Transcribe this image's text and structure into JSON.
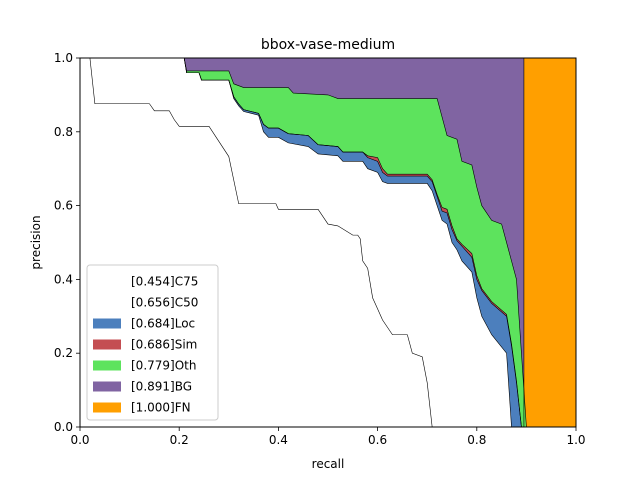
{
  "chart_data": {
    "type": "area",
    "title": "bbox-vase-medium",
    "xlabel": "recall",
    "ylabel": "precision",
    "xlim": [
      0,
      1
    ],
    "ylim": [
      0,
      1
    ],
    "xticks": [
      "0.0",
      "0.2",
      "0.4",
      "0.6",
      "0.8",
      "1.0"
    ],
    "yticks": [
      "0.0",
      "0.2",
      "0.4",
      "0.6",
      "0.8",
      "1.0"
    ],
    "legend_position": "lower-left",
    "series": [
      {
        "name": "[0.454]C75",
        "color": "#ffffff",
        "points": [
          [
            0.0,
            1.0
          ],
          [
            0.02,
            1.0
          ],
          [
            0.03,
            0.876
          ],
          [
            0.14,
            0.876
          ],
          [
            0.15,
            0.857
          ],
          [
            0.18,
            0.857
          ],
          [
            0.19,
            0.833
          ],
          [
            0.2,
            0.815
          ],
          [
            0.26,
            0.815
          ],
          [
            0.3,
            0.733
          ],
          [
            0.32,
            0.605
          ],
          [
            0.395,
            0.605
          ],
          [
            0.4,
            0.59
          ],
          [
            0.48,
            0.59
          ],
          [
            0.49,
            0.57
          ],
          [
            0.5,
            0.55
          ],
          [
            0.52,
            0.545
          ],
          [
            0.55,
            0.52
          ],
          [
            0.56,
            0.52
          ],
          [
            0.565,
            0.51
          ],
          [
            0.57,
            0.45
          ],
          [
            0.58,
            0.43
          ],
          [
            0.59,
            0.35
          ],
          [
            0.6,
            0.32
          ],
          [
            0.61,
            0.29
          ],
          [
            0.63,
            0.25
          ],
          [
            0.66,
            0.25
          ],
          [
            0.67,
            0.2
          ],
          [
            0.69,
            0.19
          ],
          [
            0.7,
            0.12
          ],
          [
            0.71,
            0.0
          ]
        ]
      },
      {
        "name": "[0.656]C50",
        "color": "#ffffff",
        "points": [
          [
            0.0,
            1.0
          ],
          [
            0.21,
            1.0
          ],
          [
            0.215,
            0.96
          ],
          [
            0.24,
            0.96
          ],
          [
            0.245,
            0.94
          ],
          [
            0.3,
            0.94
          ],
          [
            0.31,
            0.89
          ],
          [
            0.32,
            0.87
          ],
          [
            0.33,
            0.855
          ],
          [
            0.345,
            0.85
          ],
          [
            0.36,
            0.845
          ],
          [
            0.37,
            0.8
          ],
          [
            0.38,
            0.785
          ],
          [
            0.4,
            0.785
          ],
          [
            0.42,
            0.77
          ],
          [
            0.46,
            0.76
          ],
          [
            0.48,
            0.74
          ],
          [
            0.52,
            0.735
          ],
          [
            0.53,
            0.72
          ],
          [
            0.57,
            0.72
          ],
          [
            0.58,
            0.7
          ],
          [
            0.6,
            0.69
          ],
          [
            0.61,
            0.665
          ],
          [
            0.62,
            0.66
          ],
          [
            0.7,
            0.66
          ],
          [
            0.71,
            0.64
          ],
          [
            0.72,
            0.6
          ],
          [
            0.73,
            0.56
          ],
          [
            0.74,
            0.55
          ],
          [
            0.75,
            0.5
          ],
          [
            0.76,
            0.48
          ],
          [
            0.77,
            0.45
          ],
          [
            0.79,
            0.42
          ],
          [
            0.8,
            0.35
          ],
          [
            0.81,
            0.3
          ],
          [
            0.83,
            0.25
          ],
          [
            0.86,
            0.2
          ],
          [
            0.865,
            0.1
          ],
          [
            0.87,
            0.0
          ]
        ]
      },
      {
        "name": "[0.684]Loc",
        "color": "#4c7fbd",
        "points": [
          [
            0.0,
            1.0
          ],
          [
            0.21,
            1.0
          ],
          [
            0.215,
            0.96
          ],
          [
            0.24,
            0.96
          ],
          [
            0.245,
            0.94
          ],
          [
            0.3,
            0.94
          ],
          [
            0.31,
            0.895
          ],
          [
            0.32,
            0.875
          ],
          [
            0.33,
            0.86
          ],
          [
            0.345,
            0.855
          ],
          [
            0.36,
            0.85
          ],
          [
            0.37,
            0.82
          ],
          [
            0.38,
            0.81
          ],
          [
            0.4,
            0.81
          ],
          [
            0.42,
            0.795
          ],
          [
            0.46,
            0.79
          ],
          [
            0.48,
            0.765
          ],
          [
            0.52,
            0.76
          ],
          [
            0.53,
            0.745
          ],
          [
            0.57,
            0.745
          ],
          [
            0.58,
            0.73
          ],
          [
            0.6,
            0.72
          ],
          [
            0.61,
            0.69
          ],
          [
            0.62,
            0.68
          ],
          [
            0.7,
            0.68
          ],
          [
            0.71,
            0.665
          ],
          [
            0.72,
            0.625
          ],
          [
            0.73,
            0.585
          ],
          [
            0.74,
            0.58
          ],
          [
            0.75,
            0.535
          ],
          [
            0.76,
            0.505
          ],
          [
            0.77,
            0.49
          ],
          [
            0.79,
            0.46
          ],
          [
            0.8,
            0.4
          ],
          [
            0.81,
            0.37
          ],
          [
            0.83,
            0.335
          ],
          [
            0.86,
            0.3
          ],
          [
            0.87,
            0.22
          ],
          [
            0.88,
            0.12
          ],
          [
            0.89,
            0.0
          ]
        ]
      },
      {
        "name": "[0.686]Sim",
        "color": "#c44e52",
        "points": [
          [
            0.0,
            1.0
          ],
          [
            0.21,
            1.0
          ],
          [
            0.215,
            0.96
          ],
          [
            0.24,
            0.96
          ],
          [
            0.245,
            0.94
          ],
          [
            0.3,
            0.94
          ],
          [
            0.31,
            0.895
          ],
          [
            0.32,
            0.875
          ],
          [
            0.33,
            0.86
          ],
          [
            0.345,
            0.855
          ],
          [
            0.36,
            0.85
          ],
          [
            0.37,
            0.82
          ],
          [
            0.38,
            0.81
          ],
          [
            0.4,
            0.81
          ],
          [
            0.42,
            0.795
          ],
          [
            0.46,
            0.79
          ],
          [
            0.48,
            0.765
          ],
          [
            0.52,
            0.76
          ],
          [
            0.53,
            0.745
          ],
          [
            0.57,
            0.745
          ],
          [
            0.58,
            0.735
          ],
          [
            0.6,
            0.73
          ],
          [
            0.61,
            0.7
          ],
          [
            0.62,
            0.685
          ],
          [
            0.7,
            0.685
          ],
          [
            0.71,
            0.67
          ],
          [
            0.72,
            0.63
          ],
          [
            0.73,
            0.595
          ],
          [
            0.74,
            0.59
          ],
          [
            0.75,
            0.545
          ],
          [
            0.76,
            0.51
          ],
          [
            0.77,
            0.495
          ],
          [
            0.79,
            0.47
          ],
          [
            0.8,
            0.41
          ],
          [
            0.81,
            0.375
          ],
          [
            0.83,
            0.34
          ],
          [
            0.86,
            0.305
          ],
          [
            0.87,
            0.225
          ],
          [
            0.88,
            0.125
          ],
          [
            0.89,
            0.0
          ]
        ]
      },
      {
        "name": "[0.779]Oth",
        "color": "#5de35d",
        "points": [
          [
            0.0,
            1.0
          ],
          [
            0.21,
            1.0
          ],
          [
            0.215,
            0.965
          ],
          [
            0.3,
            0.965
          ],
          [
            0.31,
            0.93
          ],
          [
            0.33,
            0.92
          ],
          [
            0.42,
            0.92
          ],
          [
            0.43,
            0.905
          ],
          [
            0.5,
            0.9
          ],
          [
            0.52,
            0.89
          ],
          [
            0.72,
            0.89
          ],
          [
            0.73,
            0.84
          ],
          [
            0.74,
            0.79
          ],
          [
            0.76,
            0.78
          ],
          [
            0.77,
            0.72
          ],
          [
            0.79,
            0.71
          ],
          [
            0.8,
            0.65
          ],
          [
            0.81,
            0.6
          ],
          [
            0.83,
            0.56
          ],
          [
            0.85,
            0.55
          ],
          [
            0.86,
            0.5
          ],
          [
            0.87,
            0.45
          ],
          [
            0.88,
            0.4
          ],
          [
            0.885,
            0.3
          ],
          [
            0.89,
            0.2
          ],
          [
            0.9,
            0.0
          ]
        ]
      },
      {
        "name": "[0.891]BG",
        "color": "#8064a2",
        "points": [
          [
            0.0,
            1.0
          ],
          [
            0.895,
            1.0
          ],
          [
            0.895,
            0.0
          ]
        ]
      },
      {
        "name": "[1.000]FN",
        "color": "#ff9f00",
        "points": [
          [
            0.0,
            1.0
          ],
          [
            1.0,
            1.0
          ],
          [
            1.0,
            0.0
          ]
        ]
      }
    ]
  }
}
